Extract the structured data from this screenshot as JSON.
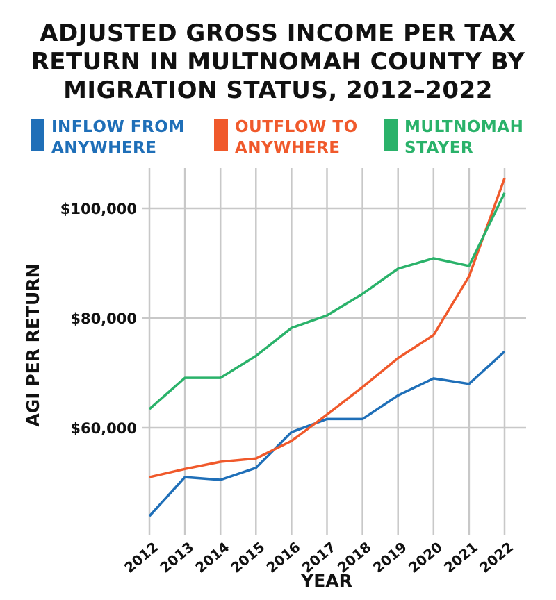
{
  "chart_data": {
    "type": "line",
    "title_lines": [
      "ADJUSTED GROSS INCOME PER TAX",
      "RETURN IN MULTNOMAH COUNTY BY",
      "MIGRATION STATUS, 2012–2022"
    ],
    "xlabel": "YEAR",
    "ylabel": "AGI PER RETURN",
    "x": [
      "2012",
      "2013",
      "2014",
      "2015",
      "2016",
      "2017",
      "2018",
      "2019",
      "2020",
      "2021",
      "2022"
    ],
    "y_ticks": [
      {
        "value": 60000,
        "label": "$60,000"
      },
      {
        "value": 80000,
        "label": "$80,000"
      },
      {
        "value": 100000,
        "label": "$100,000"
      }
    ],
    "ylim": [
      43000,
      107500
    ],
    "grid": true,
    "legend_position": "top",
    "series": [
      {
        "name_lines": [
          "INFLOW FROM",
          "ANYWHERE"
        ],
        "color": "#1f6fb8",
        "values": [
          43900,
          51000,
          50500,
          52700,
          59200,
          61600,
          61600,
          65900,
          69000,
          68000,
          73900
        ]
      },
      {
        "name_lines": [
          "OUTFLOW TO",
          "ANYWHERE"
        ],
        "color": "#f0592b",
        "values": [
          51000,
          52500,
          53800,
          54400,
          57600,
          62400,
          67400,
          72700,
          76900,
          87600,
          105500
        ]
      },
      {
        "name_lines": [
          "MULTNOMAH",
          "STAYER"
        ],
        "color": "#2ab26a",
        "values": [
          63400,
          69100,
          69100,
          73100,
          78200,
          80500,
          84400,
          89000,
          90900,
          89500,
          102800
        ]
      }
    ]
  }
}
